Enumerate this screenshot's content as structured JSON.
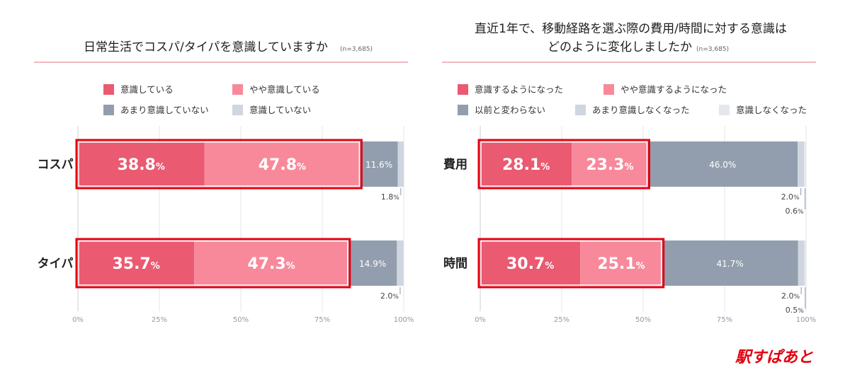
{
  "brand": {
    "logo_text": "駅すぱあと",
    "logo_color": "#e3000f"
  },
  "colors": {
    "c1": "#ea5a71",
    "c2": "#f8899a",
    "c3": "#929eae",
    "c4": "#cfd6df",
    "c5": "#e4e8ed",
    "highlight": "#e3000f",
    "divider": "#e07080",
    "grid": "#e2e6ea"
  },
  "chart_data": [
    {
      "type": "bar",
      "orientation": "horizontal",
      "stacked": true,
      "title": "日常生活でコスパ/タイパを意識していますか",
      "note": "(n=3,685)",
      "categories": [
        "コスパ",
        "タイパ"
      ],
      "series": [
        {
          "name": "意識している",
          "values": [
            38.8,
            35.7
          ]
        },
        {
          "name": "やや意識している",
          "values": [
            47.8,
            47.3
          ]
        },
        {
          "name": "あまり意識していない",
          "values": [
            11.6,
            14.9
          ]
        },
        {
          "name": "意識していない",
          "values": [
            1.8,
            2.0
          ]
        }
      ],
      "labels": [
        [
          "38.8",
          "47.8",
          "11.6%",
          "1.8"
        ],
        [
          "35.7",
          "47.3",
          "14.9%",
          "2.0"
        ]
      ],
      "highlighted_series": 2,
      "xlim": [
        0,
        100
      ],
      "xticks": [
        "0%",
        "25%",
        "50%",
        "75%",
        "100%"
      ],
      "grid": true,
      "legend_position": "top"
    },
    {
      "type": "bar",
      "orientation": "horizontal",
      "stacked": true,
      "title": "直近1年で、移動経路を選ぶ際の費用/時間に対する意識は",
      "title_line2": "どのように変化しましたか",
      "note": "(n=3,685)",
      "categories": [
        "費用",
        "時間"
      ],
      "series": [
        {
          "name": "意識するようになった",
          "values": [
            28.1,
            30.7
          ]
        },
        {
          "name": "やや意識するようになった",
          "values": [
            23.3,
            25.1
          ]
        },
        {
          "name": "以前と変わらない",
          "values": [
            46.0,
            41.7
          ]
        },
        {
          "name": "あまり意識しなくなった",
          "values": [
            2.0,
            2.0
          ]
        },
        {
          "name": "意識しなくなった",
          "values": [
            0.6,
            0.5
          ]
        }
      ],
      "labels": [
        [
          "28.1",
          "23.3",
          "46.0%",
          "2.0",
          "0.6"
        ],
        [
          "30.7",
          "25.1",
          "41.7%",
          "2.0",
          "0.5"
        ]
      ],
      "highlighted_series": 2,
      "xlim": [
        0,
        100
      ],
      "xticks": [
        "0%",
        "25%",
        "50%",
        "75%",
        "100%"
      ],
      "grid": true,
      "legend_position": "top"
    }
  ]
}
